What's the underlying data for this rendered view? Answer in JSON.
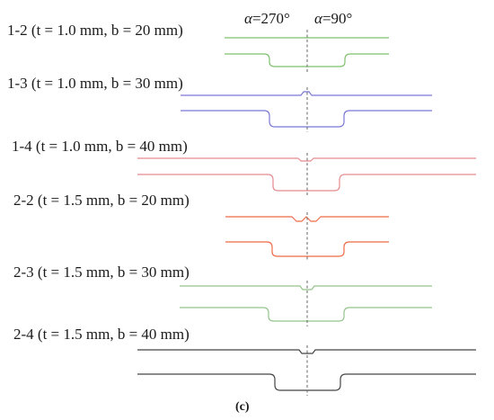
{
  "angles": {
    "left": {
      "symbol": "α",
      "value": "=270°"
    },
    "right": {
      "symbol": "α",
      "value": "=90°"
    }
  },
  "specimens": [
    {
      "label": "1-2 (t = 1.0 mm, b = 20 mm)",
      "color": "#7ec06a"
    },
    {
      "label": "1-3 (t = 1.0 mm, b = 30 mm)",
      "color": "#7b77d6"
    },
    {
      "label": "1-4 (t = 1.0 mm, b = 40 mm)",
      "color": "#e58a8f"
    },
    {
      "label": "2-2 (t = 1.5 mm, b = 20 mm)",
      "color": "#ef6a45"
    },
    {
      "label": "2-3 (t = 1.5 mm, b = 30 mm)",
      "color": "#93c48a"
    },
    {
      "label": "2-4 (t = 1.5 mm, b = 40 mm)",
      "color": "#444444"
    }
  ],
  "caption": "(c)"
}
